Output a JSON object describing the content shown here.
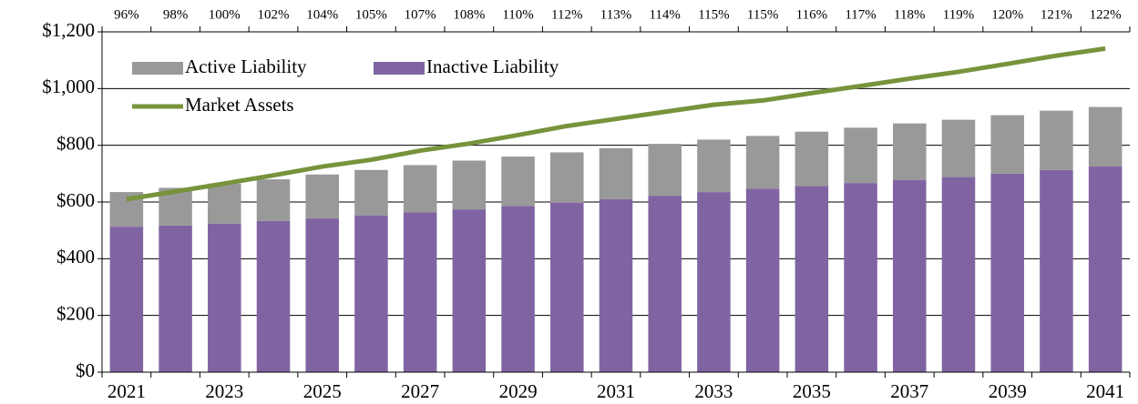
{
  "chart_data": {
    "type": "stacked_bar_line",
    "categories": [
      "2021",
      null,
      "2023",
      null,
      "2025",
      null,
      "2027",
      null,
      "2029",
      null,
      "2031",
      null,
      "2033",
      null,
      "2035",
      null,
      "2037",
      null,
      "2039",
      null,
      "2041"
    ],
    "series": [
      {
        "name": "Inactive Liability",
        "color": "#8064a2",
        "type": "bar",
        "values": [
          513,
          517,
          524,
          533,
          542,
          553,
          563,
          574,
          586,
          598,
          610,
          622,
          635,
          647,
          656,
          667,
          678,
          688,
          700,
          713,
          725
        ]
      },
      {
        "name": "Active Liability",
        "color": "#999999",
        "type": "bar",
        "values": [
          122,
          133,
          141,
          147,
          155,
          160,
          167,
          172,
          174,
          177,
          180,
          183,
          185,
          186,
          192,
          195,
          199,
          202,
          206,
          209,
          210
        ]
      },
      {
        "name": "Market Assets",
        "color": "#77933c",
        "type": "line",
        "values": [
          610,
          637,
          665,
          694,
          725,
          749,
          781,
          806,
          836,
          868,
          893,
          918,
          943,
          958,
          984,
          1009,
          1035,
          1059,
          1087,
          1116,
          1141
        ]
      }
    ],
    "funded_ratio": {
      "values": [
        96,
        98,
        100,
        102,
        104,
        105,
        107,
        108,
        110,
        112,
        113,
        114,
        115,
        115,
        116,
        117,
        118,
        119,
        120,
        121,
        122
      ],
      "value_labels": [
        "96%",
        "98%",
        "100%",
        "102%",
        "104%",
        "105%",
        "107%",
        "108%",
        "110%",
        "112%",
        "113%",
        "114%",
        "115%",
        "115%",
        "116%",
        "117%",
        "118%",
        "119%",
        "120%",
        "121%",
        "122%"
      ]
    },
    "ylim": [
      0,
      1200
    ],
    "yticks": [
      {
        "value": 0,
        "label": "$0"
      },
      {
        "value": 200,
        "label": "$200"
      },
      {
        "value": 400,
        "label": "$400"
      },
      {
        "value": 600,
        "label": "$600"
      },
      {
        "value": 800,
        "label": "$800"
      },
      {
        "value": 1000,
        "label": "$1,000"
      },
      {
        "value": 1200,
        "label": "$1,200"
      }
    ],
    "grid": true,
    "legend": "upper left"
  }
}
